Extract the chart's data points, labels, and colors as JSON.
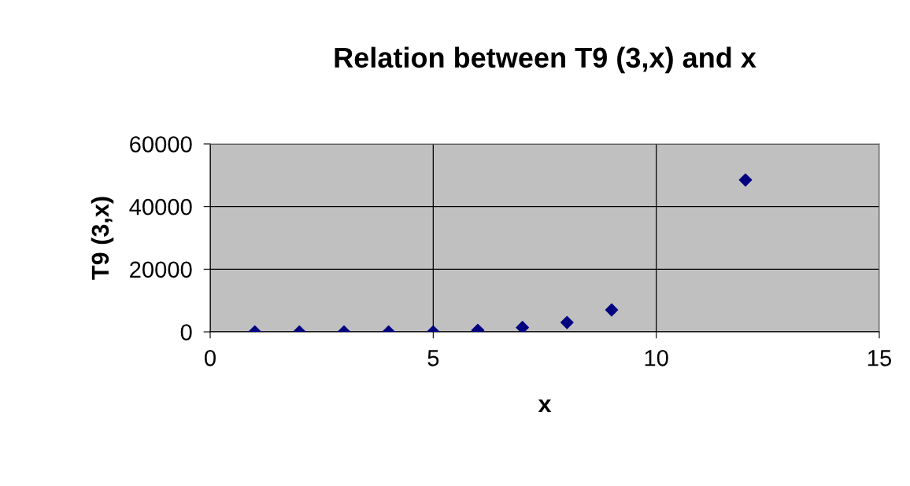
{
  "chart_data": {
    "type": "scatter",
    "title": "Relation between T9 (3,x) and x",
    "xlabel": "x",
    "ylabel": "T9 (3,x)",
    "x": [
      1,
      2,
      3,
      4,
      5,
      6,
      7,
      8,
      9,
      12
    ],
    "series": [
      {
        "color": "#000080",
        "values": [
          0,
          0,
          0,
          0,
          0,
          500,
          1400,
          3000,
          7000,
          48500
        ]
      }
    ],
    "xlim": [
      0,
      15
    ],
    "xticks": [
      0,
      5,
      10,
      15
    ],
    "ylim": [
      0,
      60000
    ],
    "yticks": [
      0,
      20000,
      40000,
      60000
    ],
    "grid": true,
    "marker": "diamond",
    "legend": false
  }
}
